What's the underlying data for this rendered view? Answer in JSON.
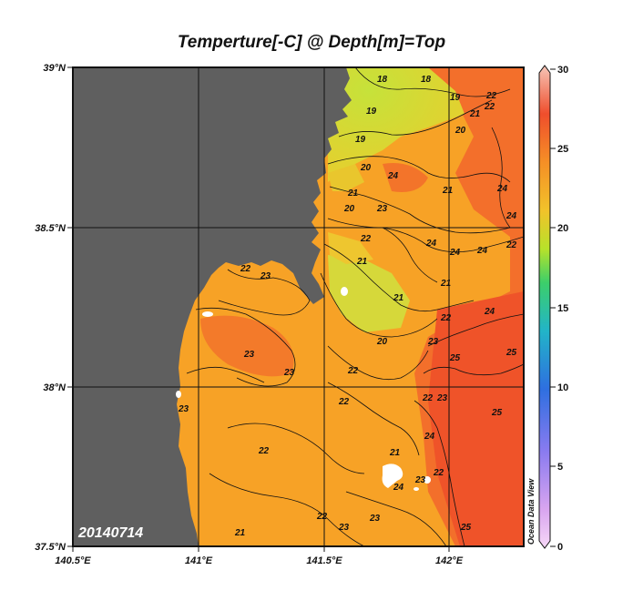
{
  "title": "Temperture[-C] @ Depth[m]=Top",
  "date_label": "20140714",
  "watermark": "Ocean Data View",
  "lat_ticks": [
    "39°N",
    "38.5°N",
    "38°N",
    "37.5°N"
  ],
  "lon_ticks": [
    "140.5°E",
    "141°E",
    "141.5°E",
    "142°E"
  ],
  "colorbar": {
    "ticks": [
      "30",
      "25",
      "20",
      "15",
      "10",
      "5",
      "0"
    ],
    "min": 0,
    "max": 30
  },
  "colors": {
    "land": "#5f5f5f",
    "cold": "#c8e23a",
    "mid": "#f7a224",
    "warm": "#f05a2a",
    "hot": "#ef4a2a"
  },
  "isotherm_labels": [
    "18",
    "18",
    "19",
    "19",
    "19",
    "20",
    "20",
    "20",
    "21",
    "21",
    "21",
    "21",
    "21",
    "21",
    "21",
    "22",
    "22",
    "22",
    "22",
    "22",
    "22",
    "22",
    "22",
    "22",
    "22",
    "22",
    "22",
    "23",
    "23",
    "23",
    "23",
    "23",
    "23",
    "23",
    "23",
    "23",
    "23",
    "24",
    "24",
    "24",
    "24",
    "24",
    "24",
    "24",
    "24",
    "24",
    "25",
    "25",
    "25",
    "25",
    "20",
    "21"
  ]
}
